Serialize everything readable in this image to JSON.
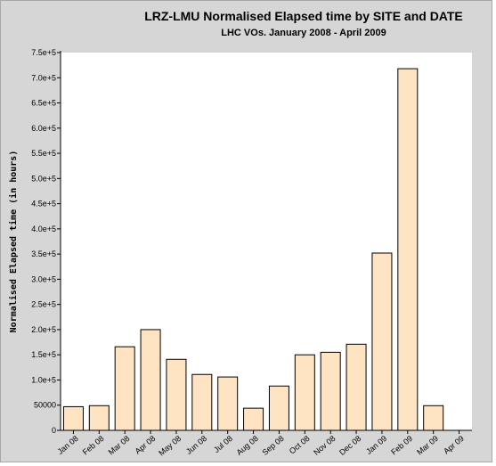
{
  "chart_data": {
    "type": "bar",
    "title": "LRZ-LMU Normalised Elapsed time by SITE and DATE",
    "subtitle": "LHC VOs. January 2008 - April 2009",
    "ylabel": "Normalised Elapsed time (in hours)",
    "xlabel": "",
    "categories": [
      "Jan 08",
      "Feb 08",
      "Mar 08",
      "Apr 08",
      "May 08",
      "Jun 08",
      "Jul 08",
      "Aug 08",
      "Sep 08",
      "Oct 08",
      "Nov 08",
      "Dec 08",
      "Jan 09",
      "Feb 09",
      "Mar 09",
      "Apr 09"
    ],
    "values": [
      47000,
      49000,
      166000,
      200000,
      141000,
      111000,
      106000,
      44000,
      88000,
      150000,
      155000,
      171000,
      352000,
      718000,
      49000,
      0
    ],
    "ylim": [
      0,
      750000
    ],
    "yticks": [
      0,
      50000,
      100000,
      150000,
      200000,
      250000,
      300000,
      350000,
      400000,
      450000,
      500000,
      550000,
      600000,
      650000,
      700000,
      750000
    ],
    "ytick_labels": [
      "0",
      "50000",
      "1.0e+5",
      "1.5e+5",
      "2.0e+5",
      "2.5e+5",
      "3.0e+5",
      "3.5e+5",
      "4.0e+5",
      "4.5e+5",
      "5.0e+5",
      "5.5e+5",
      "6.0e+5",
      "6.5e+5",
      "7.0e+5",
      "7.5e+5"
    ],
    "grid": false,
    "colors": {
      "bar_fill": "#ffe4c4",
      "bar_stroke": "#000000",
      "plot_bg": "#ffffff",
      "frame_bg": "#d6d6d6"
    }
  }
}
